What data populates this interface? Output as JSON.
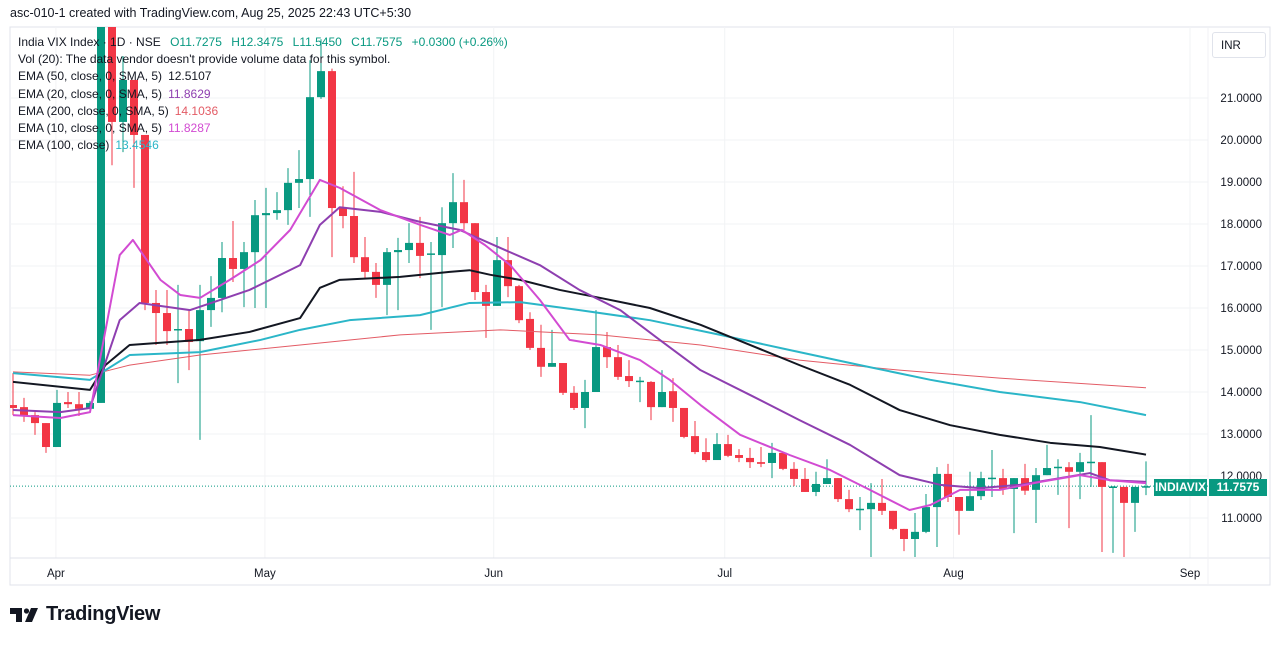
{
  "watermark": "asc-010-1 created with TradingView.com, Aug 25, 2025 22:43 UTC+5:30",
  "legend": {
    "symbol": "India VIX Index · 1D · NSE",
    "open": "O11.7275",
    "high": "H12.3475",
    "low": "L11.5450",
    "close": "C11.7575",
    "change": "+0.0300 (+0.26%)",
    "volume_note": "Vol (20): The data vendor doesn't provide volume data for this symbol.",
    "indicators": [
      {
        "label": "EMA (50, close, 0, SMA, 5)",
        "value": "12.5107",
        "color": "#131722"
      },
      {
        "label": "EMA (20, close, 0, SMA, 5)",
        "value": "11.8629",
        "color": "#8e3fb0"
      },
      {
        "label": "EMA (200, close, 0, SMA, 5)",
        "value": "14.1036",
        "color": "#e35b65"
      },
      {
        "label": "EMA (10, close, 0, SMA, 5)",
        "value": "11.8287",
        "color": "#d24bd2"
      },
      {
        "label": "EMA (100, close)",
        "value": "13.4546",
        "color": "#2bb6c8"
      }
    ]
  },
  "currency": "INR",
  "price_tag": {
    "symbol": "INDIAVIX",
    "value": "11.7575"
  },
  "logo": "TradingView",
  "colors": {
    "up": "#089981",
    "down": "#f23645"
  },
  "chart_data": {
    "type": "candlestick",
    "title": "India VIX Index · 1D · NSE",
    "ylim": [
      9.6,
      22.7
    ],
    "y_ticks": [
      "21.0000",
      "20.0000",
      "19.0000",
      "18.0000",
      "17.0000",
      "16.0000",
      "15.0000",
      "14.0000",
      "13.0000",
      "12.0000",
      "11.0000"
    ],
    "y_tick_values": [
      21,
      20,
      19,
      18,
      17,
      16,
      15,
      14,
      13,
      12,
      11
    ],
    "x_ticks": [
      {
        "label": "Apr",
        "index": 3.9
      },
      {
        "label": "May",
        "index": 22.9
      },
      {
        "label": "Jun",
        "index": 43.7
      },
      {
        "label": "Jul",
        "index": 64.7
      },
      {
        "label": "Aug",
        "index": 85.5
      },
      {
        "label": "Sep",
        "index": 107
      }
    ],
    "last_close": 11.7575,
    "ohlc": [
      [
        13.69,
        14.45,
        13.45,
        13.62
      ],
      [
        13.64,
        13.86,
        13.29,
        13.43
      ],
      [
        13.45,
        13.52,
        12.98,
        13.26
      ],
      [
        13.26,
        13.26,
        12.55,
        12.69
      ],
      [
        12.69,
        14.05,
        12.69,
        13.74
      ],
      [
        13.76,
        14.0,
        13.62,
        13.71
      ],
      [
        13.71,
        14.0,
        13.43,
        13.6
      ],
      [
        13.6,
        13.79,
        13.57,
        13.74
      ],
      [
        13.74,
        23.3,
        13.74,
        22.9
      ],
      [
        22.7,
        23.0,
        19.4,
        20.43
      ],
      [
        20.43,
        22.0,
        19.71,
        21.43
      ],
      [
        21.43,
        21.43,
        18.86,
        20.12
      ],
      [
        20.12,
        20.12,
        15.95,
        16.12
      ],
      [
        16.12,
        16.43,
        15.12,
        15.88
      ],
      [
        15.88,
        16.43,
        15.12,
        15.45
      ],
      [
        15.48,
        16.55,
        14.21,
        15.5
      ],
      [
        15.5,
        15.95,
        14.52,
        15.19
      ],
      [
        15.21,
        16.55,
        12.86,
        15.95
      ],
      [
        15.95,
        16.76,
        15.55,
        16.24
      ],
      [
        16.24,
        17.57,
        15.9,
        17.19
      ],
      [
        17.19,
        18.07,
        16.62,
        16.93
      ],
      [
        16.93,
        17.57,
        16.02,
        17.33
      ],
      [
        17.33,
        18.57,
        16.0,
        18.21
      ],
      [
        18.21,
        18.86,
        16.0,
        18.26
      ],
      [
        18.26,
        18.76,
        18.1,
        18.33
      ],
      [
        18.33,
        19.33,
        17.98,
        18.98
      ],
      [
        18.98,
        19.76,
        18.38,
        19.07
      ],
      [
        19.07,
        21.9,
        18.17,
        21.02
      ],
      [
        21.02,
        22.4,
        20.98,
        21.64
      ],
      [
        21.64,
        21.7,
        17.21,
        18.38
      ],
      [
        18.38,
        18.9,
        17.9,
        18.19
      ],
      [
        18.19,
        19.24,
        17.07,
        17.21
      ],
      [
        17.21,
        17.69,
        16.71,
        16.86
      ],
      [
        16.86,
        17.07,
        16.24,
        16.55
      ],
      [
        16.55,
        17.43,
        15.83,
        17.33
      ],
      [
        17.33,
        17.67,
        15.95,
        17.38
      ],
      [
        17.38,
        18.02,
        17.07,
        17.55
      ],
      [
        17.55,
        18.17,
        16.71,
        17.24
      ],
      [
        17.29,
        17.57,
        15.48,
        17.3
      ],
      [
        17.26,
        18.4,
        16.02,
        18.02
      ],
      [
        18.02,
        19.21,
        17.43,
        18.52
      ],
      [
        18.52,
        19.05,
        17.86,
        18.02
      ],
      [
        18.02,
        18.02,
        16.19,
        16.38
      ],
      [
        16.38,
        16.55,
        15.29,
        16.05
      ],
      [
        16.05,
        17.69,
        16.05,
        17.14
      ],
      [
        17.14,
        17.69,
        16.26,
        16.52
      ],
      [
        16.52,
        16.55,
        15.64,
        15.71
      ],
      [
        15.74,
        15.9,
        15.0,
        15.05
      ],
      [
        15.05,
        15.6,
        14.36,
        14.6
      ],
      [
        14.6,
        15.48,
        14.6,
        14.69
      ],
      [
        14.69,
        14.69,
        13.93,
        13.98
      ],
      [
        13.98,
        14.14,
        13.57,
        13.62
      ],
      [
        13.62,
        14.29,
        13.14,
        14.0
      ],
      [
        14.0,
        15.95,
        14.0,
        15.07
      ],
      [
        15.07,
        15.43,
        14.57,
        14.83
      ],
      [
        14.83,
        15.12,
        14.29,
        14.36
      ],
      [
        14.38,
        14.76,
        14.12,
        14.26
      ],
      [
        14.26,
        14.36,
        13.76,
        14.27
      ],
      [
        14.24,
        14.26,
        13.33,
        13.64
      ],
      [
        13.64,
        14.52,
        13.64,
        14.0
      ],
      [
        14.02,
        14.33,
        13.29,
        13.62
      ],
      [
        13.62,
        13.62,
        12.9,
        12.93
      ],
      [
        12.95,
        13.31,
        12.52,
        12.57
      ],
      [
        12.57,
        12.9,
        12.33,
        12.38
      ],
      [
        12.38,
        13.02,
        12.38,
        12.76
      ],
      [
        12.76,
        12.98,
        12.45,
        12.48
      ],
      [
        12.5,
        12.64,
        12.33,
        12.43
      ],
      [
        12.43,
        12.67,
        12.19,
        12.33
      ],
      [
        12.33,
        12.69,
        12.21,
        12.29
      ],
      [
        12.31,
        12.79,
        11.95,
        12.55
      ],
      [
        12.55,
        12.55,
        12.14,
        12.17
      ],
      [
        12.17,
        12.33,
        11.76,
        11.93
      ],
      [
        11.93,
        12.19,
        11.62,
        11.62
      ],
      [
        11.62,
        12.1,
        11.52,
        11.81
      ],
      [
        11.81,
        12.4,
        11.81,
        11.95
      ],
      [
        11.95,
        11.95,
        11.38,
        11.45
      ],
      [
        11.45,
        11.67,
        11.14,
        11.21
      ],
      [
        11.21,
        11.5,
        10.71,
        11.22
      ],
      [
        11.21,
        11.83,
        10.05,
        11.36
      ],
      [
        11.36,
        11.93,
        11.07,
        11.17
      ],
      [
        11.17,
        11.17,
        10.71,
        10.74
      ],
      [
        10.74,
        10.74,
        10.21,
        10.5
      ],
      [
        10.5,
        11.12,
        10.05,
        10.67
      ],
      [
        10.67,
        11.57,
        10.64,
        11.26
      ],
      [
        11.26,
        12.21,
        10.31,
        12.05
      ],
      [
        12.05,
        12.29,
        11.38,
        11.5
      ],
      [
        11.5,
        11.5,
        10.6,
        11.17
      ],
      [
        11.17,
        12.1,
        11.17,
        11.52
      ],
      [
        11.52,
        12.1,
        11.43,
        11.95
      ],
      [
        11.95,
        12.62,
        11.5,
        11.96
      ],
      [
        11.95,
        12.17,
        11.55,
        11.69
      ],
      [
        11.69,
        11.95,
        10.64,
        11.95
      ],
      [
        11.95,
        12.29,
        11.55,
        11.65
      ],
      [
        11.67,
        12.19,
        10.88,
        12.02
      ],
      [
        12.02,
        12.74,
        12.02,
        12.19
      ],
      [
        12.21,
        12.4,
        11.55,
        12.22
      ],
      [
        12.21,
        12.33,
        10.76,
        12.1
      ],
      [
        12.1,
        12.55,
        11.45,
        12.33
      ],
      [
        12.33,
        13.45,
        11.74,
        12.34
      ],
      [
        12.33,
        12.33,
        10.19,
        11.74
      ],
      [
        11.74,
        11.76,
        10.17,
        11.75
      ],
      [
        11.74,
        11.74,
        10.07,
        11.36
      ],
      [
        11.36,
        11.74,
        10.67,
        11.74
      ],
      [
        11.7275,
        12.3475,
        11.545,
        11.7575
      ]
    ],
    "series": [
      {
        "name": "EMA 200",
        "color": "#e35b65",
        "width": 1,
        "points": [
          [
            0,
            14.48
          ],
          [
            7,
            14.4
          ],
          [
            10.6,
            14.64
          ],
          [
            17,
            14.88
          ],
          [
            26.1,
            15.12
          ],
          [
            35.2,
            15.36
          ],
          [
            44.3,
            15.48
          ],
          [
            53.4,
            15.36
          ],
          [
            62.5,
            15.12
          ],
          [
            71.5,
            14.76
          ],
          [
            80.6,
            14.52
          ],
          [
            89.7,
            14.33
          ],
          [
            103,
            14.1
          ]
        ]
      },
      {
        "name": "EMA 100",
        "color": "#2bb6c8",
        "width": 2,
        "points": [
          [
            0,
            14.45
          ],
          [
            7,
            14.29
          ],
          [
            10.6,
            14.88
          ],
          [
            17,
            14.95
          ],
          [
            22.5,
            15.24
          ],
          [
            26.1,
            15.48
          ],
          [
            30.6,
            15.71
          ],
          [
            37,
            15.83
          ],
          [
            41.5,
            16.12
          ],
          [
            46.1,
            16.14
          ],
          [
            51.5,
            15.95
          ],
          [
            57.9,
            15.71
          ],
          [
            64.3,
            15.36
          ],
          [
            70.6,
            15.0
          ],
          [
            77,
            14.64
          ],
          [
            83.4,
            14.29
          ],
          [
            89.7,
            14.0
          ],
          [
            97,
            13.76
          ],
          [
            103,
            13.45
          ]
        ]
      },
      {
        "name": "EMA 50",
        "color": "#131722",
        "width": 2,
        "points": [
          [
            0,
            14.24
          ],
          [
            7,
            14.05
          ],
          [
            8.4,
            14.64
          ],
          [
            10.6,
            15.12
          ],
          [
            17,
            15.24
          ],
          [
            21.5,
            15.43
          ],
          [
            26.1,
            15.76
          ],
          [
            27.9,
            16.48
          ],
          [
            29.7,
            16.67
          ],
          [
            35.2,
            16.74
          ],
          [
            39.7,
            16.86
          ],
          [
            41.5,
            16.9
          ],
          [
            43.4,
            16.79
          ],
          [
            46.1,
            16.67
          ],
          [
            49.7,
            16.43
          ],
          [
            53.4,
            16.24
          ],
          [
            57.9,
            16.0
          ],
          [
            62.5,
            15.6
          ],
          [
            67,
            15.12
          ],
          [
            71.5,
            14.64
          ],
          [
            76.1,
            14.17
          ],
          [
            80.6,
            13.57
          ],
          [
            85.2,
            13.21
          ],
          [
            89.7,
            12.98
          ],
          [
            94.3,
            12.79
          ],
          [
            98.8,
            12.69
          ],
          [
            103,
            12.51
          ]
        ]
      },
      {
        "name": "EMA 20",
        "color": "#8e3fb0",
        "width": 2,
        "points": [
          [
            0,
            13.57
          ],
          [
            4.3,
            13.52
          ],
          [
            7,
            13.62
          ],
          [
            9.7,
            15.71
          ],
          [
            11.5,
            16.12
          ],
          [
            16.1,
            15.95
          ],
          [
            18.8,
            16.19
          ],
          [
            21.5,
            16.43
          ],
          [
            26.1,
            17.02
          ],
          [
            27.9,
            17.98
          ],
          [
            29.7,
            18.4
          ],
          [
            33.4,
            18.29
          ],
          [
            37,
            18.05
          ],
          [
            40.6,
            17.86
          ],
          [
            44.3,
            17.43
          ],
          [
            47.9,
            17.02
          ],
          [
            51.5,
            16.43
          ],
          [
            55.2,
            15.95
          ],
          [
            58.8,
            15.24
          ],
          [
            62.5,
            14.52
          ],
          [
            67,
            13.93
          ],
          [
            71.5,
            13.33
          ],
          [
            76.1,
            12.74
          ],
          [
            80.6,
            12.02
          ],
          [
            84.3,
            11.79
          ],
          [
            87.9,
            11.71
          ],
          [
            91.5,
            11.79
          ],
          [
            95.2,
            11.95
          ],
          [
            97.9,
            12.07
          ],
          [
            99.7,
            11.9
          ],
          [
            103,
            11.86
          ]
        ]
      },
      {
        "name": "EMA 10",
        "color": "#d24bd2",
        "width": 2,
        "points": [
          [
            0,
            13.45
          ],
          [
            4.3,
            13.38
          ],
          [
            7,
            13.52
          ],
          [
            9.7,
            17.26
          ],
          [
            10.9,
            17.62
          ],
          [
            13.4,
            16.67
          ],
          [
            15.2,
            16.31
          ],
          [
            17,
            16.24
          ],
          [
            19.7,
            16.67
          ],
          [
            22.5,
            17.14
          ],
          [
            25.2,
            17.86
          ],
          [
            27.9,
            19.05
          ],
          [
            29.7,
            18.86
          ],
          [
            33.4,
            18.33
          ],
          [
            37,
            17.98
          ],
          [
            39.7,
            17.74
          ],
          [
            40.8,
            17.86
          ],
          [
            42.9,
            17.5
          ],
          [
            45.2,
            17.02
          ],
          [
            47.9,
            16.19
          ],
          [
            50.6,
            15.24
          ],
          [
            53.4,
            15.12
          ],
          [
            57,
            14.76
          ],
          [
            59.7,
            14.29
          ],
          [
            62.5,
            13.69
          ],
          [
            66.1,
            12.98
          ],
          [
            70.6,
            12.5
          ],
          [
            74.3,
            12.14
          ],
          [
            77.9,
            11.67
          ],
          [
            81.5,
            11.19
          ],
          [
            83.4,
            11.31
          ],
          [
            86.1,
            11.67
          ],
          [
            89.7,
            11.67
          ],
          [
            93.4,
            11.86
          ],
          [
            97,
            12.02
          ],
          [
            99.7,
            11.9
          ],
          [
            103,
            11.83
          ]
        ]
      }
    ]
  }
}
